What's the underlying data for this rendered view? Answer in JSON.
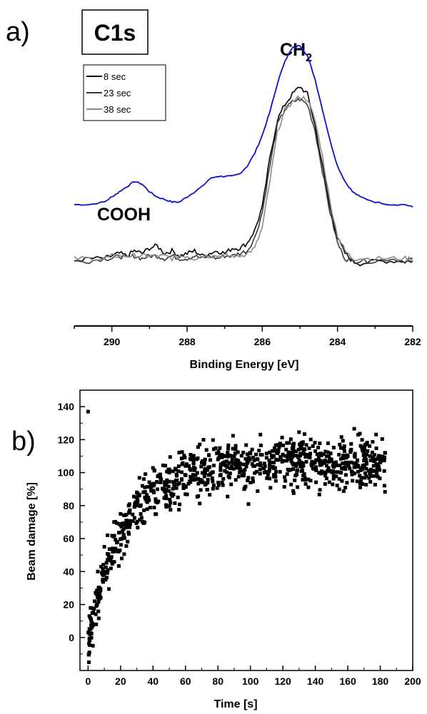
{
  "chart_data": [
    {
      "panel": "a)",
      "type": "line",
      "title_box": "C1s",
      "xlabel": "Binding Energy [eV]",
      "ylabel": "",
      "x_tick_labels": [
        "290",
        "288",
        "286",
        "284",
        "282"
      ],
      "xlim": [
        291,
        282
      ],
      "x_reversed": true,
      "y_axis_visible": false,
      "ylim": [
        0,
        1
      ],
      "grid": false,
      "legend_position": "top-left",
      "annotations": [
        {
          "text": "COOH",
          "x": 289.3
        },
        {
          "text": "CH",
          "subscript": "2",
          "x": 285.0
        }
      ],
      "series": [
        {
          "name": "",
          "color": "#1010c8",
          "x": [
            291.0,
            290.6,
            290.2,
            290.0,
            289.8,
            289.6,
            289.4,
            289.2,
            289.0,
            288.8,
            288.6,
            288.4,
            288.2,
            288.0,
            287.8,
            287.6,
            287.4,
            287.2,
            287.0,
            286.8,
            286.6,
            286.4,
            286.2,
            286.0,
            285.8,
            285.6,
            285.4,
            285.2,
            285.0,
            284.8,
            284.6,
            284.4,
            284.2,
            284.0,
            283.8,
            283.6,
            283.4,
            283.0,
            282.6,
            282.2,
            282.0
          ],
          "y": [
            0.37,
            0.37,
            0.38,
            0.4,
            0.42,
            0.44,
            0.46,
            0.45,
            0.42,
            0.4,
            0.39,
            0.38,
            0.38,
            0.4,
            0.42,
            0.44,
            0.47,
            0.48,
            0.48,
            0.48,
            0.49,
            0.52,
            0.57,
            0.64,
            0.73,
            0.84,
            0.93,
            0.98,
            0.99,
            0.95,
            0.86,
            0.74,
            0.62,
            0.52,
            0.46,
            0.42,
            0.4,
            0.38,
            0.37,
            0.37,
            0.36
          ]
        },
        {
          "name": "8 sec",
          "color": "#000000",
          "x": [
            291.0,
            290.6,
            290.2,
            290.0,
            289.8,
            289.6,
            289.4,
            289.2,
            289.0,
            288.8,
            288.6,
            288.4,
            288.2,
            288.0,
            287.8,
            287.6,
            287.4,
            287.2,
            287.0,
            286.8,
            286.6,
            286.4,
            286.2,
            286.0,
            285.8,
            285.6,
            285.4,
            285.2,
            285.0,
            284.8,
            284.6,
            284.4,
            284.2,
            284.0,
            283.8,
            283.6,
            283.4,
            283.0,
            282.6,
            282.2,
            282.0
          ],
          "y": [
            0.15,
            0.16,
            0.16,
            0.17,
            0.18,
            0.17,
            0.19,
            0.18,
            0.2,
            0.21,
            0.18,
            0.19,
            0.17,
            0.18,
            0.19,
            0.17,
            0.18,
            0.19,
            0.18,
            0.2,
            0.2,
            0.22,
            0.27,
            0.36,
            0.55,
            0.7,
            0.76,
            0.8,
            0.83,
            0.8,
            0.68,
            0.52,
            0.36,
            0.24,
            0.18,
            0.15,
            0.14,
            0.15,
            0.15,
            0.15,
            0.15
          ]
        },
        {
          "name": "23 sec",
          "color": "#3a3a3a",
          "x": [
            291.0,
            290.6,
            290.2,
            290.0,
            289.8,
            289.6,
            289.4,
            289.2,
            289.0,
            288.8,
            288.6,
            288.4,
            288.2,
            288.0,
            287.8,
            287.6,
            287.4,
            287.2,
            287.0,
            286.8,
            286.6,
            286.4,
            286.2,
            286.0,
            285.8,
            285.6,
            285.4,
            285.2,
            285.0,
            284.8,
            284.6,
            284.4,
            284.2,
            284.0,
            283.8,
            283.6,
            283.4,
            283.0,
            282.6,
            282.2,
            282.0
          ],
          "y": [
            0.15,
            0.15,
            0.16,
            0.16,
            0.17,
            0.16,
            0.17,
            0.16,
            0.17,
            0.17,
            0.16,
            0.17,
            0.16,
            0.16,
            0.17,
            0.16,
            0.17,
            0.16,
            0.17,
            0.17,
            0.18,
            0.19,
            0.24,
            0.34,
            0.52,
            0.68,
            0.74,
            0.77,
            0.78,
            0.76,
            0.66,
            0.5,
            0.34,
            0.22,
            0.16,
            0.15,
            0.15,
            0.15,
            0.16,
            0.15,
            0.16
          ]
        },
        {
          "name": "38 sec",
          "color": "#8a8a8a",
          "x": [
            291.0,
            290.6,
            290.2,
            290.0,
            289.8,
            289.6,
            289.4,
            289.2,
            289.0,
            288.8,
            288.6,
            288.4,
            288.2,
            288.0,
            287.8,
            287.6,
            287.4,
            287.2,
            287.0,
            286.8,
            286.6,
            286.4,
            286.2,
            286.0,
            285.8,
            285.6,
            285.4,
            285.2,
            285.0,
            284.8,
            284.6,
            284.4,
            284.2,
            284.0,
            283.8,
            283.6,
            283.4,
            283.0,
            282.6,
            282.2,
            282.0
          ],
          "y": [
            0.16,
            0.16,
            0.16,
            0.17,
            0.17,
            0.17,
            0.17,
            0.17,
            0.17,
            0.17,
            0.17,
            0.16,
            0.17,
            0.17,
            0.16,
            0.17,
            0.17,
            0.17,
            0.17,
            0.17,
            0.17,
            0.18,
            0.2,
            0.28,
            0.46,
            0.65,
            0.74,
            0.77,
            0.79,
            0.78,
            0.7,
            0.56,
            0.38,
            0.25,
            0.19,
            0.16,
            0.16,
            0.16,
            0.16,
            0.16,
            0.16
          ]
        }
      ]
    },
    {
      "panel": "b)",
      "type": "scatter",
      "xlabel": "Time [s]",
      "ylabel": "Beam damage [%]",
      "xlim": [
        -5,
        200
      ],
      "ylim": [
        -20,
        150
      ],
      "x_tick_labels": [
        "0",
        "20",
        "40",
        "60",
        "80",
        "100",
        "120",
        "140",
        "160",
        "180",
        "200"
      ],
      "y_tick_labels": [
        "0",
        "20",
        "40",
        "60",
        "80",
        "100",
        "120",
        "140"
      ],
      "grid": false,
      "marker": "square",
      "color": "#000000",
      "trend_model": "y = 108 * (1 - exp(-t/22)) - 2",
      "point_count": 900,
      "time_range": [
        0,
        183
      ],
      "x": [
        0,
        0.5,
        1,
        1.5,
        2,
        3,
        4,
        5,
        6,
        7,
        8,
        9,
        10,
        12,
        14,
        16,
        18,
        20,
        25,
        30,
        35,
        40,
        45,
        50,
        60,
        70,
        80,
        90,
        100,
        110,
        120,
        130,
        140,
        150,
        160,
        170,
        180,
        183
      ],
      "y": [
        137,
        -15,
        2,
        18,
        10,
        -5,
        22,
        8,
        40,
        26,
        43,
        35,
        55,
        62,
        48,
        70,
        58,
        75,
        80,
        88,
        85,
        92,
        96,
        100,
        104,
        106,
        108,
        110,
        112,
        109,
        111,
        110,
        113,
        108,
        110,
        112,
        110,
        112
      ]
    }
  ]
}
